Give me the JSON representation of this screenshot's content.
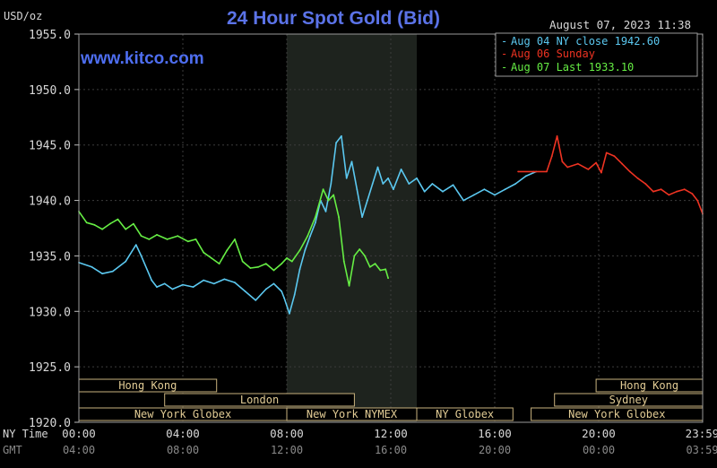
{
  "chart_data": {
    "type": "line",
    "title": "24 Hour Spot Gold (Bid)",
    "ylabel": "USD/oz",
    "watermark": "www.kitco.com",
    "timestamp": "August 07, 2023 11:38",
    "ylim": [
      1920,
      1955
    ],
    "xlim": [
      0,
      24
    ],
    "y_ticks": [
      {
        "value": 1955,
        "label": "1955.0"
      },
      {
        "value": 1950,
        "label": "1950.0"
      },
      {
        "value": 1945,
        "label": "1945.0"
      },
      {
        "value": 1940,
        "label": "1940.0"
      },
      {
        "value": 1935,
        "label": "1935.0"
      },
      {
        "value": 1930,
        "label": "1930.0"
      },
      {
        "value": 1925,
        "label": "1925.0"
      },
      {
        "value": 1920,
        "label": "1920.0"
      }
    ],
    "x_axis_label_ny": "NY Time",
    "x_axis_label_gmt": "GMT",
    "x_ticks": [
      {
        "hour": 0,
        "ny": "00:00",
        "gmt": "04:00"
      },
      {
        "hour": 4,
        "ny": "04:00",
        "gmt": "08:00"
      },
      {
        "hour": 8,
        "ny": "08:00",
        "gmt": "12:00"
      },
      {
        "hour": 12,
        "ny": "12:00",
        "gmt": "16:00"
      },
      {
        "hour": 16,
        "ny": "16:00",
        "gmt": "20:00"
      },
      {
        "hour": 20,
        "ny": "20:00",
        "gmt": "00:00"
      },
      {
        "hour": 23.983,
        "ny": "23:59",
        "gmt": "03:59"
      }
    ],
    "shaded_region_hours": [
      8,
      13
    ],
    "legend": [
      {
        "label": "Aug 04 NY close 1942.60",
        "color": "#5bc8f0"
      },
      {
        "label": "Aug 06 Sunday",
        "color": "#ee3322"
      },
      {
        "label": "Aug 07 Last 1933.10",
        "color": "#66ee44"
      }
    ],
    "sessions": [
      {
        "label": "Hong Kong",
        "start": 0,
        "end": 5.3
      },
      {
        "label": "Hong Kong",
        "start": 19.9,
        "end": 24
      },
      {
        "label": "London",
        "start": 3.3,
        "end": 10.6
      },
      {
        "label": "Sydney",
        "start": 18.3,
        "end": 24
      },
      {
        "label": "New York Globex",
        "start": 0,
        "end": 8
      },
      {
        "label": "New York NYMEX",
        "start": 8,
        "end": 13
      },
      {
        "label": "NY Globex",
        "start": 13,
        "end": 16.7
      },
      {
        "label": "New York Globex",
        "start": 17.4,
        "end": 24
      }
    ],
    "series": [
      {
        "name": "Aug 04 NY close",
        "color": "#5bc8f0",
        "x": [
          0,
          0.5,
          0.9,
          1.3,
          1.8,
          2.2,
          2.4,
          2.8,
          3.0,
          3.3,
          3.6,
          4.0,
          4.4,
          4.8,
          5.2,
          5.6,
          6.0,
          6.4,
          6.8,
          7.2,
          7.5,
          7.8,
          7.9,
          8.1,
          8.3,
          8.5,
          8.7,
          8.9,
          9.1,
          9.3,
          9.5,
          9.7,
          9.9,
          10.1,
          10.3,
          10.5,
          10.7,
          10.9,
          11.1,
          11.3,
          11.5,
          11.7,
          11.9,
          12.1,
          12.4,
          12.7,
          13.0,
          13.3,
          13.6,
          14.0,
          14.4,
          14.8,
          15.2,
          15.6,
          16.0,
          16.4,
          16.8,
          17.2,
          17.6
        ],
        "values": [
          1934.4,
          1934.0,
          1933.4,
          1933.6,
          1934.5,
          1936.0,
          1935.0,
          1932.8,
          1932.2,
          1932.5,
          1932.0,
          1932.4,
          1932.2,
          1932.8,
          1932.5,
          1932.9,
          1932.6,
          1931.8,
          1931.0,
          1932.0,
          1932.5,
          1931.8,
          1931.2,
          1929.8,
          1931.5,
          1933.8,
          1935.5,
          1936.8,
          1938.0,
          1940.0,
          1939.0,
          1941.5,
          1945.2,
          1945.8,
          1942.0,
          1943.5,
          1941.0,
          1938.5,
          1940.0,
          1941.5,
          1943.0,
          1941.5,
          1942.0,
          1941.0,
          1942.8,
          1941.5,
          1942.0,
          1940.8,
          1941.5,
          1940.8,
          1941.4,
          1940.0,
          1940.5,
          1941.0,
          1940.5,
          1941.0,
          1941.5,
          1942.2,
          1942.6
        ]
      },
      {
        "name": "Aug 06 Sunday",
        "color": "#ee3322",
        "x": [
          16.9,
          17.5,
          18.0,
          18.2,
          18.4,
          18.6,
          18.8,
          19.2,
          19.6,
          19.9,
          20.1,
          20.3,
          20.6,
          20.9,
          21.2,
          21.5,
          21.8,
          22.1,
          22.4,
          22.7,
          23.0,
          23.3,
          23.6,
          23.8,
          24.0
        ],
        "values": [
          1942.6,
          1942.6,
          1942.6,
          1944.0,
          1945.8,
          1943.5,
          1943.0,
          1943.3,
          1942.8,
          1943.4,
          1942.5,
          1944.3,
          1944.0,
          1943.3,
          1942.6,
          1942.0,
          1941.5,
          1940.8,
          1941.0,
          1940.5,
          1940.8,
          1941.0,
          1940.6,
          1940.0,
          1938.8
        ]
      },
      {
        "name": "Aug 07 Last",
        "color": "#66ee44",
        "x": [
          0,
          0.3,
          0.6,
          0.9,
          1.2,
          1.5,
          1.8,
          2.1,
          2.4,
          2.7,
          3.0,
          3.4,
          3.8,
          4.2,
          4.5,
          4.8,
          5.1,
          5.4,
          5.7,
          6.0,
          6.3,
          6.6,
          6.9,
          7.2,
          7.5,
          7.8,
          8.0,
          8.2,
          8.5,
          8.8,
          9.1,
          9.4,
          9.6,
          9.8,
          10.0,
          10.2,
          10.4,
          10.6,
          10.8,
          11.0,
          11.2,
          11.4,
          11.6,
          11.8,
          11.9
        ],
        "values": [
          1939.0,
          1938.0,
          1937.8,
          1937.4,
          1937.9,
          1938.3,
          1937.4,
          1937.9,
          1936.8,
          1936.5,
          1936.9,
          1936.5,
          1936.8,
          1936.3,
          1936.5,
          1935.3,
          1934.8,
          1934.3,
          1935.5,
          1936.5,
          1934.5,
          1933.9,
          1934.0,
          1934.3,
          1933.7,
          1934.3,
          1934.8,
          1934.5,
          1935.5,
          1936.8,
          1938.5,
          1941.0,
          1940.0,
          1940.5,
          1938.5,
          1934.5,
          1932.3,
          1935.0,
          1935.6,
          1935.0,
          1934.0,
          1934.3,
          1933.7,
          1933.8,
          1933.0
        ]
      }
    ]
  }
}
